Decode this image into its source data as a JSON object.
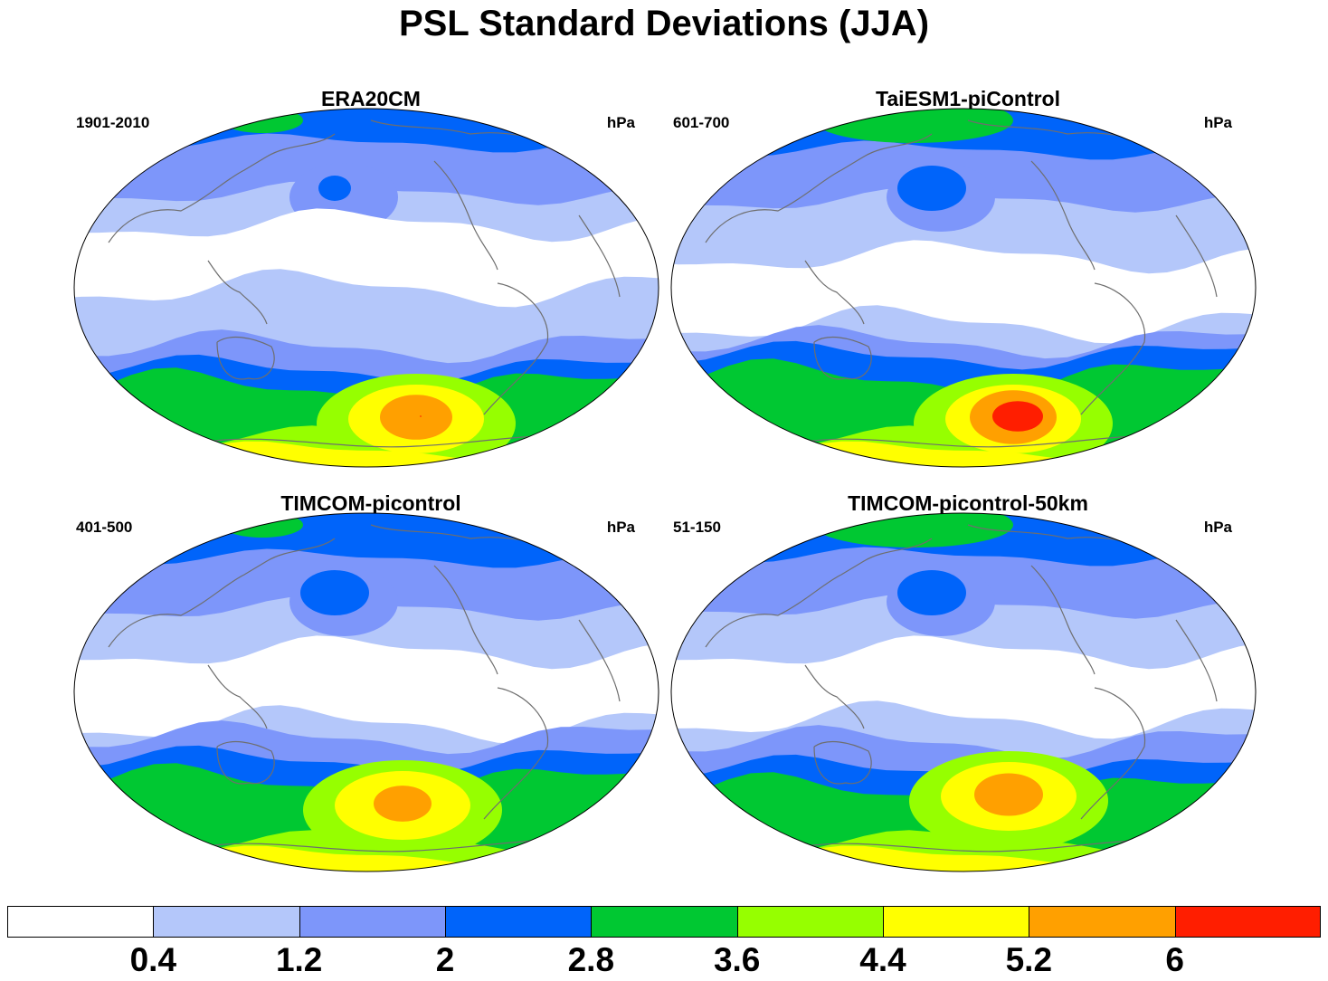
{
  "title": "PSL Standard Deviations (JJA)",
  "colors": {
    "levels": [
      "#ffffff",
      "#b4c7fa",
      "#7d96fa",
      "#0064fa",
      "#00c832",
      "#96ff00",
      "#ffff00",
      "#ffa000",
      "#ff1e00"
    ],
    "coast": "#6e6e6e",
    "border": "#000000"
  },
  "colorbar": {
    "labels": [
      "0.4",
      "1.2",
      "2",
      "2.8",
      "3.6",
      "4.4",
      "5.2",
      "6"
    ]
  },
  "panels": [
    {
      "title": "ERA20CM",
      "period": "1901-2010",
      "units": "hPa",
      "variant": 0
    },
    {
      "title": "TaiESM1-piControl",
      "period": "601-700",
      "units": "hPa",
      "variant": 1
    },
    {
      "title": "TIMCOM-picontrol",
      "period": "401-500",
      "units": "hPa",
      "variant": 2
    },
    {
      "title": "TIMCOM-picontrol-50km",
      "period": "51-150",
      "units": "hPa",
      "variant": 3
    }
  ]
}
